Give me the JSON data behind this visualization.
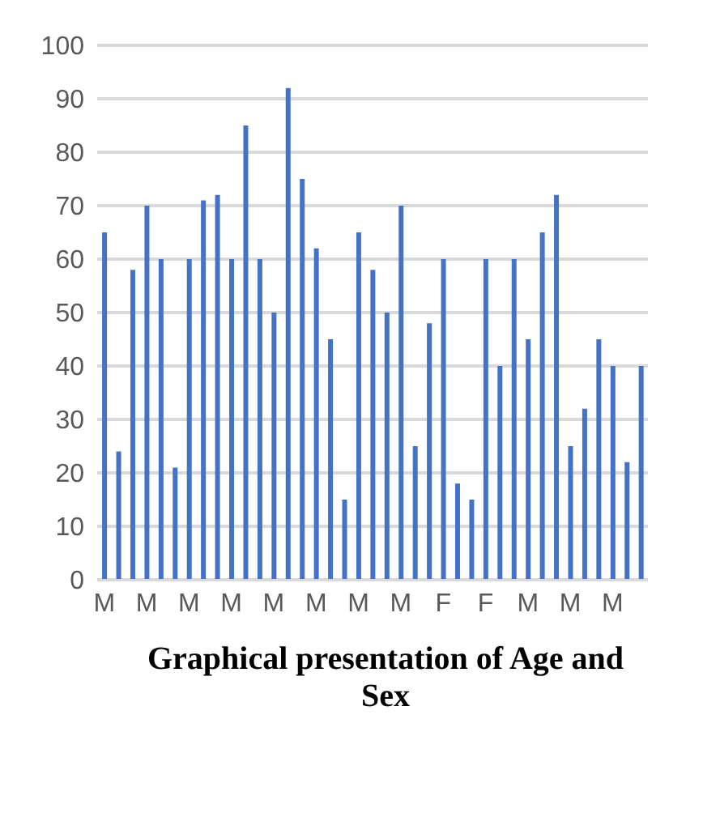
{
  "chart_data": {
    "type": "bar",
    "title": "Graphical presentation of Age and Sex",
    "categories": [
      "M",
      null,
      null,
      "M",
      null,
      null,
      "M",
      null,
      null,
      "M",
      null,
      null,
      "M",
      null,
      null,
      "M",
      null,
      null,
      "M",
      null,
      null,
      "M",
      null,
      null,
      "F",
      null,
      null,
      "F",
      null,
      null,
      "M",
      null,
      null,
      "M",
      null,
      null,
      "M",
      null,
      null
    ],
    "values": [
      65,
      24,
      58,
      70,
      60,
      21,
      60,
      71,
      72,
      60,
      85,
      60,
      50,
      92,
      75,
      62,
      45,
      15,
      65,
      58,
      50,
      70,
      25,
      48,
      60,
      18,
      15,
      60,
      40,
      60,
      45,
      65,
      72,
      25,
      32,
      45,
      40,
      22,
      40
    ],
    "color": "#4472c4",
    "ylim": [
      0,
      100
    ],
    "yticks": [
      0,
      10,
      20,
      30,
      40,
      50,
      60,
      70,
      80,
      90,
      100
    ],
    "grid": "y"
  }
}
